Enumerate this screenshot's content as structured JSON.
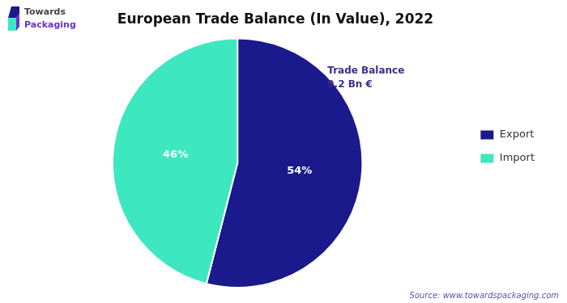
{
  "chart_data": {
    "type": "pie",
    "title": "European Trade Balance (In Value), 2022",
    "categories": [
      "Export",
      "Import"
    ],
    "values": [
      54,
      46
    ],
    "value_labels": [
      "54%",
      "46%"
    ],
    "data_labels": true,
    "colors": [
      "#1a1a8c",
      "#3de8c0"
    ],
    "legend": "right",
    "annotations": [
      "Trade Balance",
      "9.2 Bn €",
      "Source: www.towardspackaging.com",
      "Towards",
      "Packaging"
    ]
  }
}
